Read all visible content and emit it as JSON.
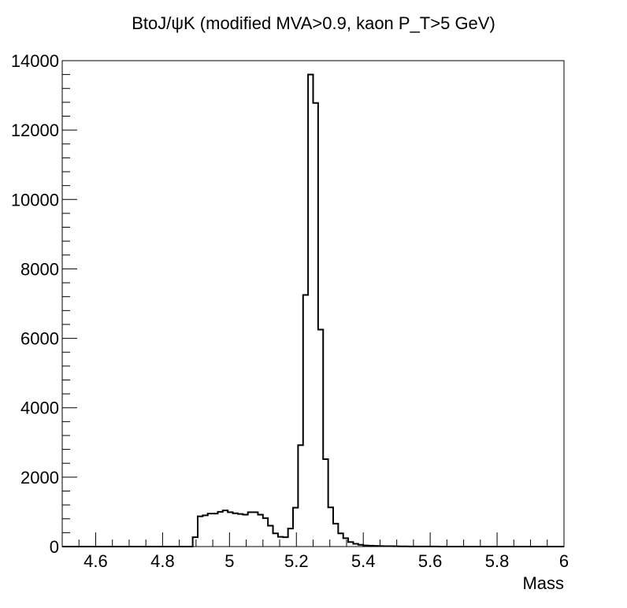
{
  "chart_data": {
    "type": "histogram",
    "title": "BtoJ/ψK (modified MVA>0.9, kaon P_T>5 GeV)",
    "xlabel": "Mass",
    "ylabel": "",
    "xlim": [
      4.5,
      6.0
    ],
    "ylim": [
      0,
      14000
    ],
    "x_ticks": [
      "4.6",
      "4.8",
      "5",
      "5.2",
      "5.4",
      "5.6",
      "5.8",
      "6"
    ],
    "x_tick_values": [
      4.6,
      4.8,
      5.0,
      5.2,
      5.4,
      5.6,
      5.8,
      6.0
    ],
    "y_ticks": [
      "0",
      "2000",
      "4000",
      "6000",
      "8000",
      "10000",
      "12000",
      "14000"
    ],
    "y_tick_values": [
      0,
      2000,
      4000,
      6000,
      8000,
      10000,
      12000,
      14000
    ],
    "bin_width": 0.015,
    "bin_start": 4.5,
    "values": [
      0,
      0,
      0,
      0,
      0,
      0,
      0,
      0,
      0,
      0,
      0,
      0,
      0,
      0,
      0,
      0,
      0,
      0,
      0,
      0,
      0,
      0,
      0,
      0,
      0,
      0,
      270,
      870,
      900,
      950,
      950,
      1000,
      1040,
      990,
      960,
      940,
      920,
      990,
      990,
      920,
      820,
      600,
      380,
      280,
      270,
      520,
      1120,
      2920,
      7250,
      13600,
      12780,
      6250,
      2520,
      1130,
      660,
      380,
      240,
      130,
      80,
      50,
      30,
      25,
      20,
      15,
      12,
      10,
      8,
      6,
      5,
      4,
      3,
      3,
      2,
      2,
      2,
      1,
      1,
      1,
      1,
      1,
      0,
      0,
      0,
      0,
      0,
      0,
      0,
      0,
      0,
      0,
      0,
      0,
      0,
      0,
      0,
      0,
      0,
      0,
      0,
      0
    ],
    "line_color": "#000000",
    "grid": false,
    "legend": false
  }
}
